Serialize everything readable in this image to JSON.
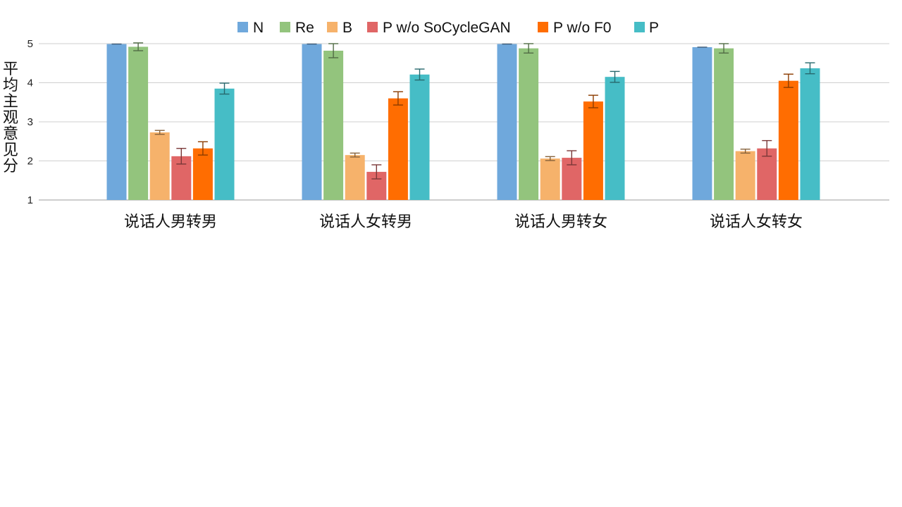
{
  "chart_data": {
    "type": "bar",
    "title": "",
    "xlabel": "",
    "ylabel": "平均主观意见分",
    "ylim": [
      1,
      5
    ],
    "yticks": [
      "1",
      "2",
      "3",
      "4",
      "5"
    ],
    "grid": true,
    "legend_position": "top-center",
    "categories": [
      "说话人男转男",
      "说话人女转男",
      "说话人男转女",
      "说话人女转女"
    ],
    "series": [
      {
        "name": "N",
        "color": "#6fa8dc",
        "values": [
          4.99,
          4.99,
          4.99,
          4.91
        ],
        "errors": [
          0.0,
          0.0,
          0.0,
          0.0
        ]
      },
      {
        "name": "Re",
        "color": "#93c47d",
        "values": [
          4.92,
          4.82,
          4.88,
          4.88
        ],
        "errors": [
          0.1,
          0.18,
          0.12,
          0.12
        ]
      },
      {
        "name": "B",
        "color": "#f6b26b",
        "values": [
          2.73,
          2.15,
          2.06,
          2.25
        ],
        "errors": [
          0.05,
          0.05,
          0.05,
          0.05
        ]
      },
      {
        "name": "P w/o SoCycleGAN",
        "color": "#e06666",
        "values": [
          2.12,
          1.72,
          2.08,
          2.32
        ],
        "errors": [
          0.2,
          0.18,
          0.18,
          0.2
        ]
      },
      {
        "name": "P w/o F0",
        "color": "#ff6d01",
        "values": [
          2.32,
          3.6,
          3.52,
          4.05
        ],
        "errors": [
          0.17,
          0.17,
          0.16,
          0.17
        ]
      },
      {
        "name": "P",
        "color": "#46bdc6",
        "values": [
          3.85,
          4.21,
          4.15,
          4.37
        ],
        "errors": [
          0.14,
          0.14,
          0.14,
          0.14
        ]
      }
    ]
  }
}
